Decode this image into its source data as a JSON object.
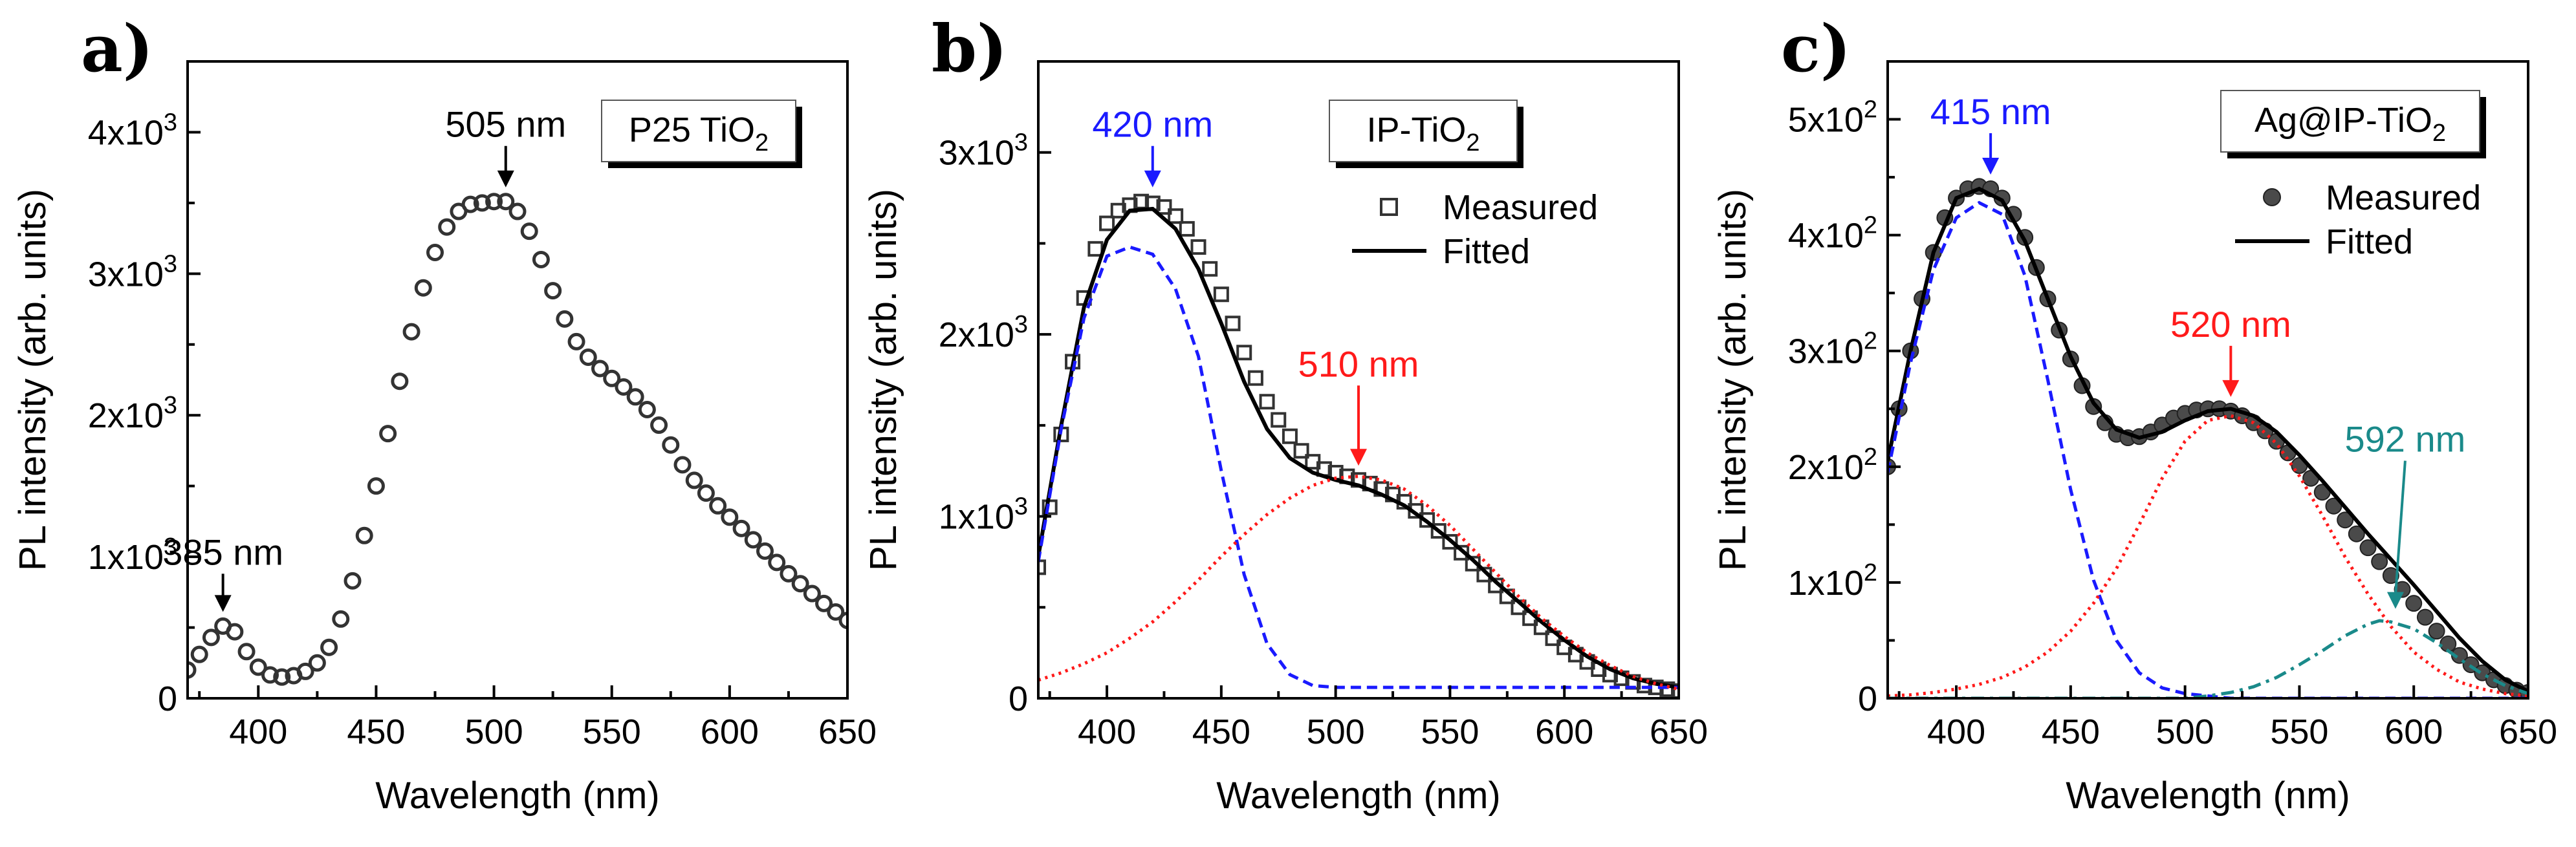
{
  "chart_data": [
    {
      "type": "scatter",
      "panel_label": "a)",
      "xlabel": "Wavelength (nm)",
      "ylabel": "PL intensity (arb. units)",
      "xlim": [
        370,
        650
      ],
      "ylim": [
        0,
        4500
      ],
      "xticks": [
        400,
        450,
        500,
        550,
        600,
        650
      ],
      "yticks": [
        {
          "value": 0,
          "base": "0",
          "exp": ""
        },
        {
          "value": 1000,
          "base": "1x10",
          "exp": "3"
        },
        {
          "value": 2000,
          "base": "2x10",
          "exp": "3"
        },
        {
          "value": 3000,
          "base": "3x10",
          "exp": "3"
        },
        {
          "value": 4000,
          "base": "4x10",
          "exp": "3"
        }
      ],
      "sample_box": {
        "main": "P25 TiO",
        "sub": "2"
      },
      "legend": [],
      "annotations": [
        {
          "text": "385 nm",
          "x": 385,
          "y": 510,
          "color": "#000000"
        },
        {
          "text": "505 nm",
          "x": 505,
          "y": 3510,
          "color": "#000000"
        }
      ],
      "series": [
        {
          "name": "Measured",
          "style": "open-circle",
          "color": "#333333",
          "x": [
            370,
            375,
            380,
            385,
            390,
            395,
            400,
            405,
            410,
            415,
            420,
            425,
            430,
            435,
            440,
            445,
            450,
            455,
            460,
            465,
            470,
            475,
            480,
            485,
            490,
            495,
            500,
            505,
            510,
            515,
            520,
            525,
            530,
            535,
            540,
            545,
            550,
            555,
            560,
            565,
            570,
            575,
            580,
            585,
            590,
            595,
            600,
            605,
            610,
            615,
            620,
            625,
            630,
            635,
            640,
            645,
            650
          ],
          "y": [
            200,
            310,
            430,
            510,
            470,
            330,
            220,
            165,
            150,
            160,
            190,
            250,
            360,
            560,
            830,
            1150,
            1500,
            1870,
            2240,
            2590,
            2900,
            3150,
            3330,
            3440,
            3490,
            3500,
            3510,
            3510,
            3440,
            3300,
            3100,
            2880,
            2680,
            2520,
            2410,
            2330,
            2260,
            2200,
            2130,
            2040,
            1930,
            1790,
            1650,
            1540,
            1450,
            1360,
            1280,
            1200,
            1120,
            1040,
            960,
            880,
            810,
            740,
            670,
            610,
            550
          ]
        }
      ]
    },
    {
      "type": "scatter",
      "panel_label": "b)",
      "xlabel": "Wavelength (nm)",
      "ylabel": "PL intensity (arb. units)",
      "xlim": [
        370,
        650
      ],
      "ylim": [
        0,
        3500
      ],
      "xticks": [
        400,
        450,
        500,
        550,
        600,
        650
      ],
      "yticks": [
        {
          "value": 0,
          "base": "0",
          "exp": ""
        },
        {
          "value": 1000,
          "base": "1x10",
          "exp": "3"
        },
        {
          "value": 2000,
          "base": "2x10",
          "exp": "3"
        },
        {
          "value": 3000,
          "base": "3x10",
          "exp": "3"
        }
      ],
      "sample_box": {
        "main": "IP-TiO",
        "sub": "2"
      },
      "legend": [
        {
          "label": "Measured",
          "style": "open-square"
        },
        {
          "label": "Fitted",
          "style": "line"
        }
      ],
      "annotations": [
        {
          "text": "420 nm",
          "x": 420,
          "y": 2730,
          "color": "#1a1aff"
        },
        {
          "text": "510 nm",
          "x": 510,
          "y": 1200,
          "color": "#ff1a1a"
        }
      ],
      "series": [
        {
          "name": "Measured",
          "style": "open-square",
          "color": "#333333",
          "x": [
            370,
            375,
            380,
            385,
            390,
            395,
            400,
            405,
            410,
            415,
            420,
            425,
            430,
            435,
            440,
            445,
            450,
            455,
            460,
            465,
            470,
            475,
            480,
            485,
            490,
            495,
            500,
            505,
            510,
            515,
            520,
            525,
            530,
            535,
            540,
            545,
            550,
            555,
            560,
            565,
            570,
            575,
            580,
            585,
            590,
            595,
            600,
            605,
            610,
            615,
            620,
            625,
            630,
            635,
            640,
            645,
            650
          ],
          "y": [
            720,
            1050,
            1450,
            1850,
            2200,
            2470,
            2610,
            2680,
            2710,
            2730,
            2720,
            2700,
            2650,
            2580,
            2480,
            2360,
            2220,
            2060,
            1900,
            1760,
            1630,
            1530,
            1440,
            1360,
            1300,
            1260,
            1240,
            1220,
            1200,
            1180,
            1150,
            1120,
            1080,
            1030,
            980,
            920,
            860,
            800,
            740,
            680,
            620,
            560,
            500,
            440,
            390,
            330,
            280,
            240,
            200,
            160,
            130,
            110,
            90,
            70,
            60,
            50,
            40
          ]
        },
        {
          "name": "Fitted",
          "style": "solid",
          "color": "#000000",
          "x": [
            370,
            380,
            390,
            400,
            410,
            420,
            430,
            440,
            450,
            460,
            470,
            480,
            490,
            500,
            510,
            520,
            530,
            540,
            550,
            560,
            570,
            580,
            590,
            600,
            610,
            620,
            630,
            640,
            650
          ],
          "y": [
            780,
            1500,
            2150,
            2520,
            2680,
            2690,
            2580,
            2360,
            2060,
            1740,
            1480,
            1320,
            1240,
            1200,
            1170,
            1120,
            1060,
            970,
            870,
            760,
            640,
            530,
            420,
            320,
            230,
            160,
            110,
            80,
            60
          ]
        },
        {
          "name": "Peak 420 nm",
          "style": "dashed",
          "color": "#1a1aff",
          "x": [
            370,
            380,
            390,
            400,
            410,
            420,
            430,
            440,
            450,
            460,
            470,
            480,
            490,
            500,
            520,
            550,
            600,
            650
          ],
          "y": [
            750,
            1480,
            2090,
            2430,
            2480,
            2440,
            2250,
            1880,
            1250,
            680,
            300,
            130,
            70,
            60,
            60,
            60,
            60,
            60
          ]
        },
        {
          "name": "Peak 510 nm",
          "style": "dotted",
          "color": "#ff1a1a",
          "x": [
            370,
            380,
            390,
            400,
            410,
            420,
            430,
            440,
            450,
            460,
            470,
            480,
            490,
            500,
            510,
            520,
            530,
            540,
            550,
            560,
            570,
            580,
            590,
            600,
            610,
            620,
            630,
            640,
            650
          ],
          "y": [
            100,
            140,
            190,
            250,
            330,
            420,
            530,
            650,
            780,
            900,
            1010,
            1100,
            1170,
            1210,
            1220,
            1200,
            1150,
            1060,
            950,
            820,
            690,
            560,
            440,
            340,
            250,
            180,
            120,
            80,
            50
          ]
        }
      ]
    },
    {
      "type": "scatter",
      "panel_label": "c)",
      "xlabel": "Wavelength (nm)",
      "ylabel": "PL intensity (arb. units)",
      "xlim": [
        370,
        650
      ],
      "ylim": [
        0,
        550
      ],
      "xticks": [
        400,
        450,
        500,
        550,
        600,
        650
      ],
      "yticks": [
        {
          "value": 0,
          "base": "0",
          "exp": ""
        },
        {
          "value": 100,
          "base": "1x10",
          "exp": "2"
        },
        {
          "value": 200,
          "base": "2x10",
          "exp": "2"
        },
        {
          "value": 300,
          "base": "3x10",
          "exp": "2"
        },
        {
          "value": 400,
          "base": "4x10",
          "exp": "2"
        },
        {
          "value": 500,
          "base": "5x10",
          "exp": "2"
        }
      ],
      "sample_box": {
        "main": "Ag@IP-TiO",
        "sub": "2"
      },
      "legend": [
        {
          "label": "Measured",
          "style": "filled-circle"
        },
        {
          "label": "Fitted",
          "style": "line"
        }
      ],
      "annotations": [
        {
          "text": "415 nm",
          "x": 415,
          "y": 440,
          "color": "#1a1aff"
        },
        {
          "text": "520 nm",
          "x": 520,
          "y": 248,
          "color": "#ff1a1a"
        },
        {
          "text": "592 nm",
          "x": 592,
          "y": 65,
          "color": "#1a8a8a"
        }
      ],
      "series": [
        {
          "name": "Measured",
          "style": "filled-circle",
          "color": "#4a4a4a",
          "x": [
            370,
            375,
            380,
            385,
            390,
            395,
            400,
            405,
            410,
            415,
            420,
            425,
            430,
            435,
            440,
            445,
            450,
            455,
            460,
            465,
            470,
            475,
            480,
            485,
            490,
            495,
            500,
            505,
            510,
            515,
            520,
            525,
            530,
            535,
            540,
            545,
            550,
            555,
            560,
            565,
            570,
            575,
            580,
            585,
            590,
            595,
            600,
            605,
            610,
            615,
            620,
            625,
            630,
            635,
            640,
            645,
            650
          ],
          "y": [
            200,
            250,
            300,
            345,
            385,
            415,
            432,
            440,
            442,
            440,
            432,
            418,
            398,
            372,
            345,
            318,
            293,
            270,
            252,
            238,
            228,
            225,
            226,
            230,
            236,
            242,
            246,
            249,
            250,
            250,
            248,
            244,
            238,
            231,
            222,
            212,
            201,
            190,
            178,
            166,
            154,
            142,
            130,
            118,
            106,
            94,
            82,
            70,
            58,
            47,
            37,
            29,
            22,
            16,
            11,
            7,
            5
          ]
        },
        {
          "name": "Fitted",
          "style": "solid",
          "color": "#000000",
          "x": [
            370,
            380,
            390,
            400,
            410,
            420,
            430,
            440,
            450,
            460,
            470,
            480,
            490,
            500,
            510,
            520,
            530,
            540,
            550,
            560,
            570,
            580,
            590,
            600,
            610,
            620,
            630,
            640,
            650
          ],
          "y": [
            205,
            300,
            385,
            432,
            440,
            430,
            395,
            345,
            295,
            255,
            232,
            225,
            230,
            240,
            248,
            250,
            244,
            230,
            210,
            188,
            165,
            142,
            120,
            98,
            75,
            52,
            32,
            16,
            6
          ]
        },
        {
          "name": "Peak 415 nm",
          "style": "dashed",
          "color": "#1a1aff",
          "x": [
            370,
            380,
            390,
            400,
            410,
            420,
            430,
            440,
            450,
            460,
            470,
            480,
            490,
            500,
            510,
            520,
            550,
            600,
            650
          ],
          "y": [
            195,
            290,
            370,
            415,
            428,
            418,
            365,
            275,
            180,
            102,
            50,
            22,
            9,
            4,
            2,
            0,
            0,
            0,
            0
          ]
        },
        {
          "name": "Peak 520 nm",
          "style": "dotted",
          "color": "#ff1a1a",
          "x": [
            370,
            380,
            390,
            400,
            410,
            420,
            430,
            440,
            450,
            460,
            470,
            480,
            490,
            500,
            510,
            520,
            530,
            540,
            550,
            560,
            570,
            580,
            590,
            600,
            610,
            620,
            630,
            640,
            650
          ],
          "y": [
            2,
            3,
            5,
            8,
            12,
            18,
            27,
            40,
            58,
            82,
            112,
            150,
            190,
            222,
            240,
            244,
            238,
            220,
            192,
            158,
            122,
            90,
            62,
            40,
            25,
            14,
            8,
            4,
            2
          ]
        },
        {
          "name": "Peak 592 nm",
          "style": "dash-dot",
          "color": "#1a8a8a",
          "x": [
            370,
            500,
            510,
            520,
            530,
            540,
            550,
            560,
            570,
            580,
            585,
            590,
            600,
            610,
            620,
            630,
            640,
            650
          ],
          "y": [
            0,
            0,
            2,
            5,
            10,
            18,
            29,
            41,
            54,
            64,
            67,
            66,
            60,
            48,
            34,
            21,
            11,
            4
          ]
        }
      ]
    }
  ]
}
